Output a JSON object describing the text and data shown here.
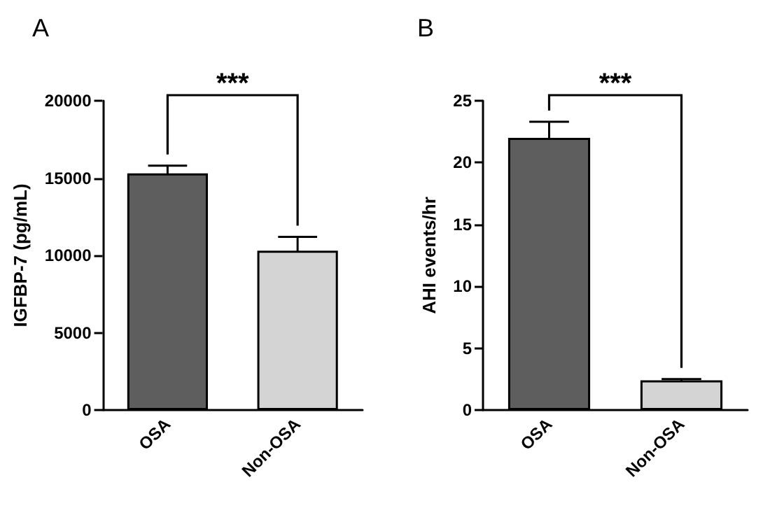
{
  "chart_data": [
    {
      "type": "bar",
      "title": "A",
      "ylabel": "IGFBP-7 (pg/mL)",
      "categories": [
        "OSA",
        "Non-OSA"
      ],
      "values": [
        15300,
        10300
      ],
      "errors": [
        500,
        900
      ],
      "colors": [
        "#5e5e5e",
        "#d4d4d4"
      ],
      "ylim": [
        0,
        20000
      ],
      "yticks": [
        0,
        5000,
        10000,
        15000,
        20000
      ],
      "grid": false,
      "annotations": [
        "***"
      ]
    },
    {
      "type": "bar",
      "title": "B",
      "ylabel": "AHI events/hr",
      "categories": [
        "OSA",
        "Non-OSA"
      ],
      "values": [
        22,
        2.4
      ],
      "errors": [
        1.3,
        0.1
      ],
      "colors": [
        "#5e5e5e",
        "#d4d4d4"
      ],
      "ylim": [
        0,
        25
      ],
      "yticks": [
        0,
        5,
        10,
        15,
        20,
        25
      ],
      "grid": false,
      "annotations": [
        "***"
      ]
    }
  ]
}
